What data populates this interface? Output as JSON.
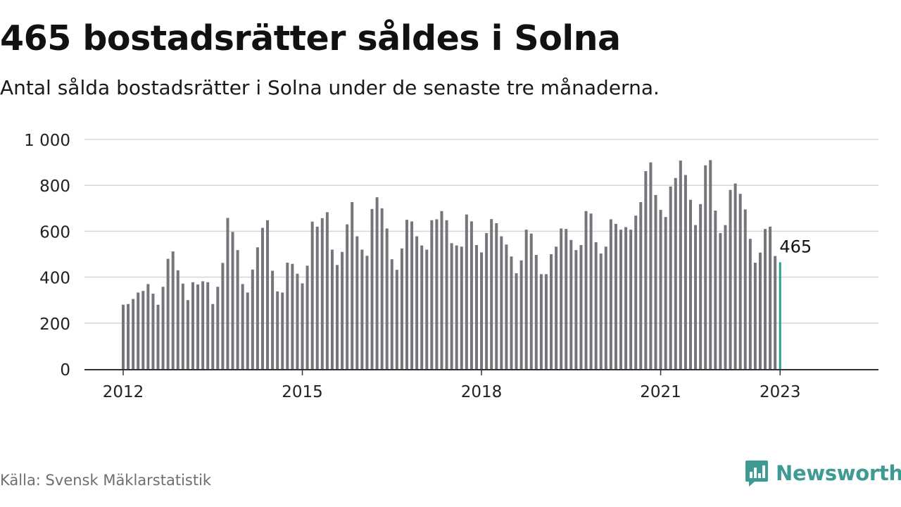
{
  "header": {
    "title": "465 bostadsrätter såldes i Solna",
    "subtitle": "Antal sålda bostadsrätter i Solna under de senaste tre månaderna."
  },
  "footer": {
    "source": "Källa: Svensk Mäklarstatistik",
    "logo_text": "Newsworthy"
  },
  "colors": {
    "bar": "#75757b",
    "highlight": "#2a9d96",
    "grid": "#d8d8d8",
    "axis": "#333333",
    "brand": "#3e9a92"
  },
  "chart_data": {
    "type": "bar",
    "x_start": "2012-01",
    "x_step": "month",
    "ylim": [
      0,
      1000
    ],
    "y_ticks": [
      0,
      200,
      400,
      600,
      800,
      1000
    ],
    "y_tick_labels": [
      "0",
      "200",
      "400",
      "600",
      "800",
      "1 000"
    ],
    "x_ticks": [
      "2012",
      "2015",
      "2018",
      "2021",
      "2023"
    ],
    "grid": true,
    "values": [
      280,
      283,
      305,
      333,
      340,
      370,
      328,
      280,
      358,
      480,
      512,
      430,
      372,
      300,
      378,
      368,
      382,
      378,
      283,
      358,
      462,
      658,
      597,
      518,
      370,
      333,
      433,
      530,
      615,
      648,
      428,
      338,
      333,
      463,
      458,
      415,
      373,
      450,
      642,
      620,
      657,
      683,
      520,
      453,
      510,
      630,
      727,
      578,
      520,
      493,
      697,
      748,
      700,
      612,
      478,
      432,
      525,
      650,
      643,
      578,
      538,
      520,
      648,
      652,
      688,
      648,
      548,
      538,
      533,
      673,
      643,
      540,
      508,
      592,
      653,
      635,
      578,
      542,
      490,
      417,
      473,
      607,
      590,
      497,
      413,
      413,
      500,
      533,
      612,
      610,
      562,
      518,
      540,
      688,
      677,
      552,
      503,
      533,
      652,
      632,
      607,
      618,
      607,
      668,
      727,
      862,
      900,
      758,
      693,
      662,
      795,
      832,
      908,
      845,
      737,
      627,
      718,
      887,
      910,
      690,
      592,
      627,
      780,
      808,
      763,
      695,
      567,
      463,
      507,
      610,
      620,
      492,
      465
    ],
    "highlight_label": "465"
  }
}
